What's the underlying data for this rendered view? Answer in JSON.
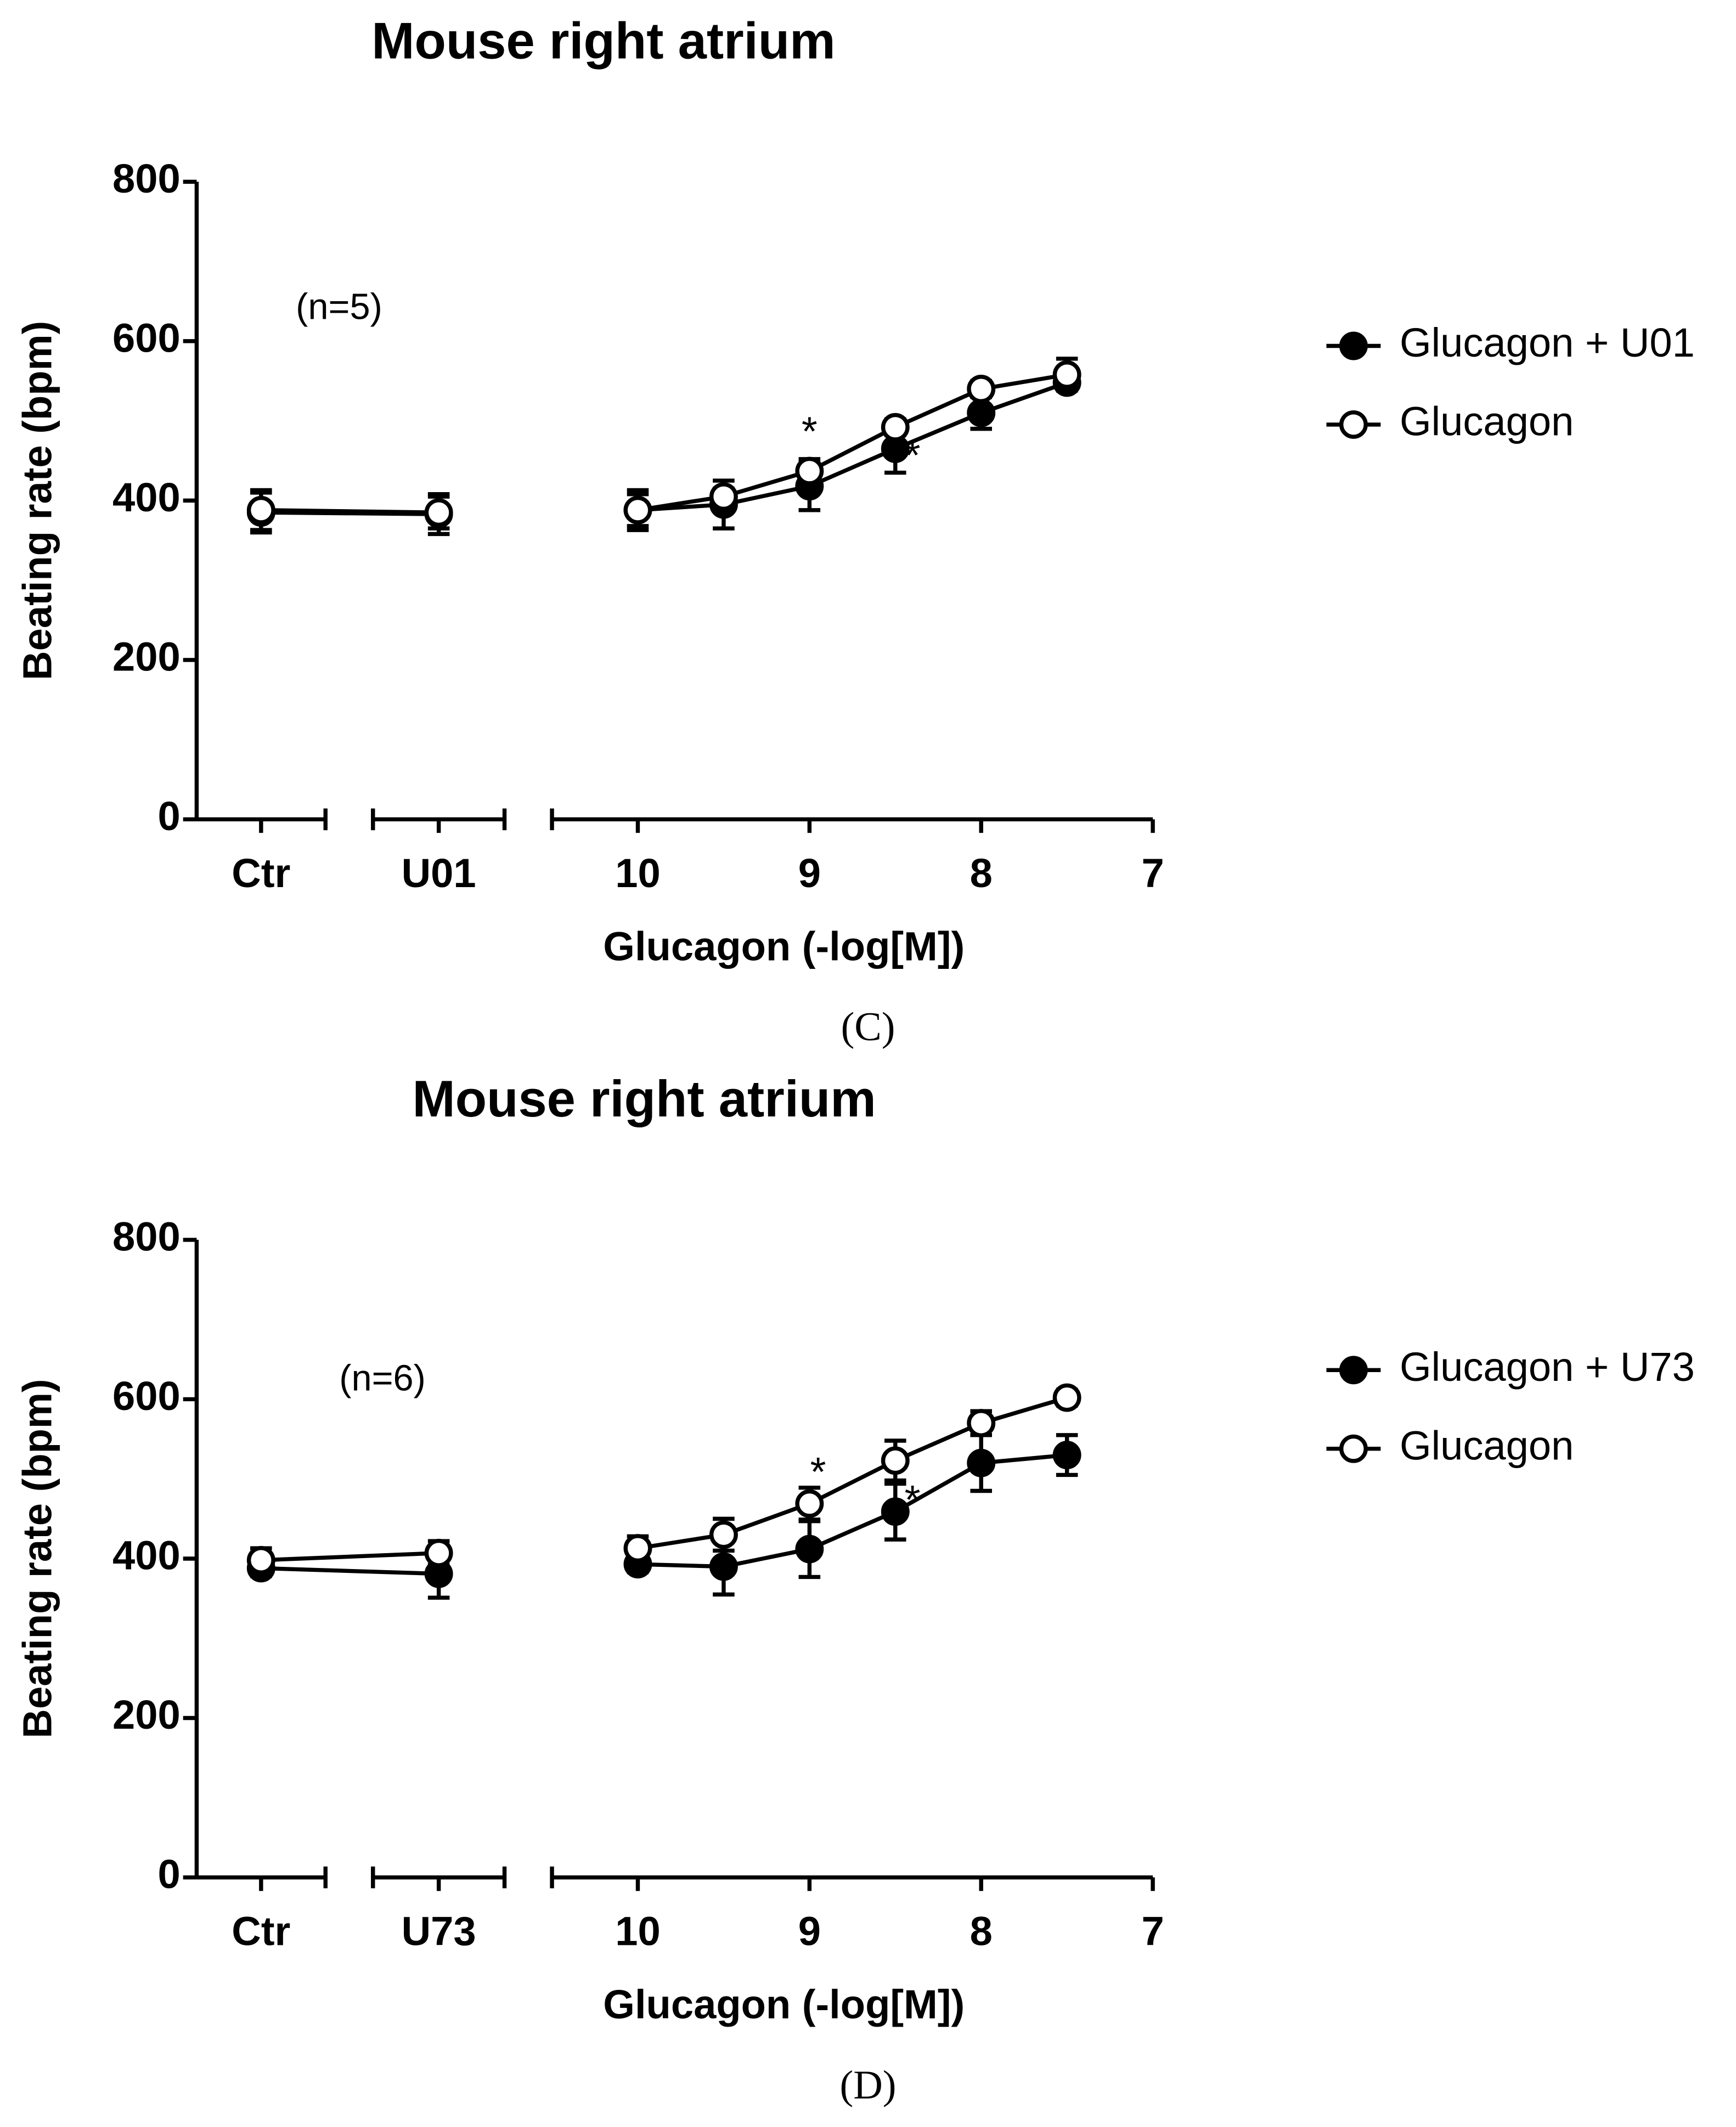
{
  "chart_data": [
    {
      "type": "line",
      "title": "Mouse right atrium",
      "annotation": "(n=5)",
      "caption": "(C)",
      "y_label": "Beating rate (bpm)",
      "x_label": "Glucagon (-log[M])",
      "categories": [
        "Ctr",
        "U01"
      ],
      "x": [
        10,
        9.5,
        9,
        8.5,
        8,
        7.5
      ],
      "xlim": [
        10.5,
        7
      ],
      "xticks": [
        10,
        9,
        8,
        7
      ],
      "ylim": [
        0,
        800
      ],
      "yticks": [
        0,
        200,
        400,
        600,
        800
      ],
      "legend": "right",
      "series": [
        {
          "name": "Glucagon + U01",
          "color": "#000000",
          "category_values": [
            385,
            383
          ],
          "category_errors": [
            25,
            25
          ],
          "values": [
            388,
            395,
            418,
            465,
            510,
            548
          ],
          "errors": [
            20,
            30,
            30,
            30,
            20,
            10
          ]
        },
        {
          "name": "Glucagon",
          "color": "#ffffff",
          "category_values": [
            388,
            385
          ],
          "category_errors": [
            25,
            20
          ],
          "values": [
            388,
            405,
            437,
            492,
            540,
            558
          ],
          "errors": [
            25,
            10,
            15,
            10,
            10,
            20
          ]
        }
      ],
      "marks": [
        {
          "label": "*",
          "x": 9,
          "y": 483
        },
        {
          "label": "*",
          "x": 8.4,
          "y": 453
        }
      ]
    },
    {
      "type": "line",
      "title": "Mouse right atrium",
      "annotation": "(n=6)",
      "caption": "(D)",
      "y_label": "Beating rate (bpm)",
      "x_label": "Glucagon (-log[M])",
      "categories": [
        "Ctr",
        "U73"
      ],
      "x": [
        10,
        9.5,
        9,
        8.5,
        8,
        7.5
      ],
      "xlim": [
        10.5,
        7
      ],
      "xticks": [
        10,
        9,
        8,
        7
      ],
      "ylim": [
        0,
        800
      ],
      "yticks": [
        0,
        200,
        400,
        600,
        800
      ],
      "legend": "right",
      "series": [
        {
          "name": "Glucagon + U73",
          "color": "#000000",
          "category_values": [
            388,
            381
          ],
          "category_errors": [
            10,
            30
          ],
          "values": [
            393,
            390,
            412,
            459,
            520,
            530
          ],
          "errors": [
            10,
            35,
            35,
            35,
            35,
            25
          ]
        },
        {
          "name": "Glucagon",
          "color": "#ffffff",
          "category_values": [
            398,
            407
          ],
          "category_errors": [
            15,
            15
          ],
          "values": [
            413,
            430,
            469,
            523,
            570,
            602
          ],
          "errors": [
            15,
            20,
            20,
            25,
            15,
            10
          ]
        }
      ],
      "marks": [
        {
          "label": "*",
          "x": 8.95,
          "y": 505
        },
        {
          "label": "*",
          "x": 8.4,
          "y": 470
        }
      ]
    }
  ]
}
